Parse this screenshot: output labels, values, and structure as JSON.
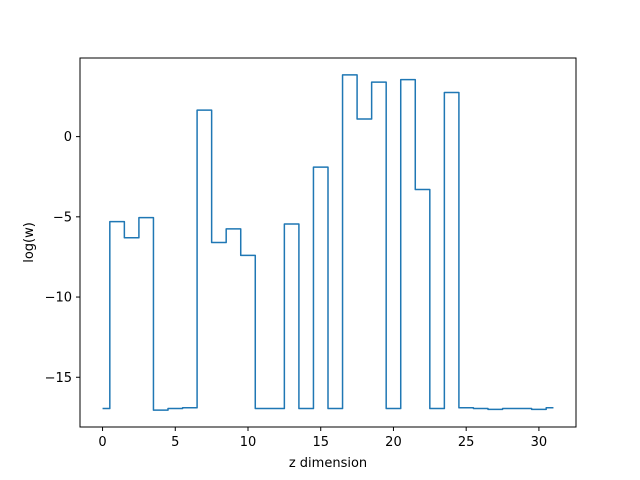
{
  "chart_data": {
    "type": "line",
    "drawstyle": "steps-mid",
    "title": "",
    "xlabel": "z dimension",
    "ylabel": "log(w)",
    "xlim": [
      -1.55,
      32.55
    ],
    "ylim": [
      -18.1,
      4.9
    ],
    "xticks": [
      0,
      5,
      10,
      15,
      20,
      25,
      30
    ],
    "xtick_labels": [
      "0",
      "5",
      "10",
      "15",
      "20",
      "25",
      "30"
    ],
    "yticks": [
      -15,
      -10,
      -5,
      0
    ],
    "ytick_labels": [
      "−15",
      "−10",
      "−5",
      "0"
    ],
    "grid": false,
    "legend": "none",
    "series": [
      {
        "color": "#1f77b4",
        "x": [
          0,
          1,
          2,
          3,
          4,
          5,
          6,
          7,
          8,
          9,
          10,
          11,
          12,
          13,
          14,
          15,
          16,
          17,
          18,
          19,
          20,
          21,
          22,
          23,
          24,
          25,
          26,
          27,
          28,
          29,
          30,
          31
        ],
        "values": [
          -16.95,
          -5.3,
          -6.3,
          -5.05,
          -17.05,
          -16.95,
          -16.9,
          1.65,
          -6.6,
          -5.75,
          -7.4,
          -16.95,
          -16.95,
          -5.45,
          -16.95,
          -1.9,
          -16.95,
          3.85,
          1.1,
          3.4,
          -16.95,
          3.55,
          -3.3,
          -16.95,
          2.75,
          -16.9,
          -16.95,
          -17.0,
          -16.95,
          -16.95,
          -17.0,
          -16.9
        ]
      }
    ]
  }
}
